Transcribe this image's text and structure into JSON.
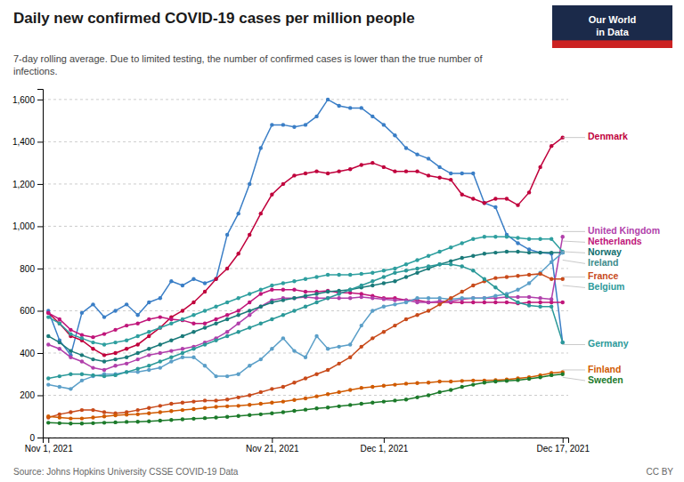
{
  "chart_data": {
    "type": "line",
    "title": "Daily new confirmed COVID-19 cases per million people",
    "subtitle": "7-day rolling average. Due to limited testing, the number of confirmed cases is lower than the true number of\ninfections.",
    "source": "Source: Johns Hopkins University CSSE COVID-19 Data",
    "license": "CC BY",
    "logo": [
      "Our World",
      "in Data"
    ],
    "categories": [
      "Nov 1, 2021",
      null,
      null,
      null,
      null,
      null,
      null,
      null,
      null,
      null,
      null,
      null,
      null,
      null,
      null,
      null,
      null,
      null,
      null,
      null,
      "Nov 21, 2021",
      null,
      null,
      null,
      null,
      null,
      null,
      null,
      null,
      null,
      "Dec 1, 2021",
      null,
      null,
      null,
      null,
      null,
      null,
      null,
      null,
      null,
      null,
      null,
      null,
      null,
      null,
      null,
      "Dec 17, 2021"
    ],
    "ylim": [
      0,
      1650
    ],
    "yticks": [
      0,
      200,
      400,
      600,
      800,
      {
        "value": 1000,
        "label": "1,000"
      },
      {
        "value": 1200,
        "label": "1,200"
      },
      {
        "value": 1400,
        "label": "1,400"
      },
      {
        "value": 1600,
        "label": "1,600"
      }
    ],
    "grid": true,
    "marker": "circle",
    "series": [
      {
        "color": "#3A7EC6",
        "values": [
          600,
          460,
          390,
          590,
          630,
          570,
          600,
          630,
          580,
          640,
          660,
          740,
          720,
          750,
          730,
          750,
          960,
          1060,
          1200,
          1370,
          1480,
          1480,
          1470,
          1480,
          1520,
          1600,
          1570,
          1560,
          1560,
          1520,
          1480,
          1430,
          1370,
          1340,
          1320,
          1280,
          1250,
          1250,
          1250,
          1110,
          1090,
          960,
          920,
          890,
          875,
          870,
          450
        ]
      },
      {
        "color": "#C0003C",
        "values": [
          590,
          540,
          480,
          460,
          420,
          390,
          400,
          420,
          440,
          480,
          520,
          570,
          600,
          640,
          690,
          750,
          800,
          870,
          960,
          1060,
          1150,
          1200,
          1240,
          1250,
          1260,
          1250,
          1260,
          1270,
          1290,
          1300,
          1280,
          1260,
          1260,
          1260,
          1240,
          1230,
          1220,
          1150,
          1130,
          1110,
          1130,
          1130,
          1100,
          1160,
          1280,
          1380,
          1420
        ]
      },
      {
        "color": "#C0157A",
        "values": [
          590,
          560,
          510,
          485,
          475,
          490,
          510,
          530,
          540,
          560,
          570,
          560,
          555,
          540,
          540,
          560,
          580,
          600,
          640,
          680,
          700,
          700,
          700,
          690,
          690,
          695,
          685,
          685,
          680,
          670,
          660,
          660,
          650,
          650,
          640,
          640,
          640,
          640,
          640,
          640,
          640,
          640,
          635,
          640,
          640,
          640,
          640
        ]
      },
      {
        "color": "#B13FAB",
        "values": [
          440,
          420,
          380,
          360,
          330,
          320,
          340,
          350,
          370,
          390,
          400,
          410,
          420,
          430,
          450,
          470,
          500,
          540,
          580,
          620,
          650,
          660,
          660,
          665,
          660,
          660,
          660,
          660,
          665,
          660,
          655,
          650,
          650,
          640,
          640,
          645,
          645,
          655,
          660,
          660,
          660,
          665,
          665,
          665,
          660,
          655,
          950
        ]
      },
      {
        "color": "#2E9F9F",
        "values": [
          570,
          540,
          490,
          470,
          450,
          440,
          450,
          460,
          480,
          500,
          520,
          540,
          560,
          580,
          600,
          620,
          640,
          660,
          680,
          700,
          720,
          730,
          740,
          750,
          760,
          770,
          770,
          770,
          775,
          780,
          790,
          800,
          820,
          840,
          860,
          880,
          900,
          920,
          940,
          950,
          950,
          950,
          945,
          940,
          940,
          940,
          880
        ]
      },
      {
        "color": "#1A7A7A",
        "values": [
          480,
          450,
          410,
          390,
          370,
          360,
          370,
          380,
          400,
          420,
          440,
          460,
          480,
          500,
          520,
          540,
          560,
          580,
          600,
          620,
          640,
          650,
          660,
          670,
          680,
          690,
          695,
          700,
          710,
          720,
          730,
          740,
          760,
          780,
          800,
          820,
          835,
          850,
          860,
          870,
          875,
          880,
          880,
          875,
          875,
          875,
          875
        ]
      },
      {
        "color": "#5B9FC8",
        "values": [
          250,
          240,
          230,
          270,
          290,
          300,
          300,
          310,
          310,
          320,
          330,
          360,
          380,
          380,
          340,
          290,
          290,
          300,
          340,
          370,
          420,
          470,
          410,
          380,
          480,
          420,
          430,
          440,
          530,
          600,
          620,
          630,
          640,
          660,
          660,
          660,
          655,
          660,
          660,
          660,
          670,
          680,
          700,
          730,
          780,
          830,
          875
        ]
      },
      {
        "color": "#C84A1A",
        "values": [
          95,
          110,
          120,
          130,
          130,
          120,
          115,
          120,
          130,
          140,
          150,
          160,
          165,
          170,
          175,
          175,
          180,
          190,
          200,
          215,
          230,
          240,
          260,
          280,
          300,
          320,
          350,
          380,
          430,
          470,
          500,
          530,
          560,
          580,
          600,
          630,
          660,
          690,
          720,
          740,
          755,
          760,
          765,
          770,
          775,
          750,
          750
        ]
      },
      {
        "color": "#2B9999",
        "values": [
          280,
          290,
          300,
          300,
          295,
          290,
          295,
          310,
          325,
          340,
          360,
          380,
          400,
          420,
          440,
          460,
          480,
          500,
          520,
          540,
          560,
          580,
          600,
          620,
          640,
          660,
          680,
          700,
          720,
          740,
          760,
          780,
          790,
          800,
          810,
          820,
          820,
          810,
          790,
          750,
          710,
          670,
          640,
          625,
          620,
          620,
          450
        ]
      },
      {
        "color": "#D05A00",
        "values": [
          100,
          95,
          90,
          90,
          95,
          100,
          105,
          108,
          110,
          115,
          120,
          125,
          130,
          135,
          140,
          145,
          148,
          150,
          155,
          160,
          165,
          170,
          178,
          185,
          195,
          205,
          215,
          225,
          235,
          240,
          245,
          250,
          255,
          258,
          260,
          265,
          265,
          268,
          270,
          270,
          272,
          275,
          280,
          285,
          295,
          305,
          310
        ]
      },
      {
        "color": "#1C7A2A",
        "values": [
          70,
          68,
          66,
          66,
          68,
          70,
          72,
          74,
          75,
          77,
          80,
          83,
          86,
          89,
          92,
          95,
          98,
          102,
          106,
          110,
          115,
          120,
          126,
          132,
          138,
          142,
          148,
          154,
          160,
          165,
          170,
          175,
          180,
          190,
          200,
          215,
          225,
          240,
          250,
          260,
          265,
          268,
          272,
          278,
          285,
          295,
          300
        ]
      }
    ],
    "annotations": [
      {
        "text": "Denmark",
        "y": 1420,
        "color": "#C0003C"
      },
      {
        "text": "United Kingdom",
        "y": 975,
        "color": "#B13FAB"
      },
      {
        "text": "Netherlands",
        "y": 930,
        "color": "#C0157A"
      },
      {
        "text": "Norway",
        "y": 880,
        "color": "#0E6E6E"
      },
      {
        "text": "Ireland",
        "y": 840,
        "color": "#3B8B8B"
      },
      {
        "text": "France",
        "y": 760,
        "color": "#C84A1A"
      },
      {
        "text": "Belgium",
        "y": 720,
        "color": "#2D9A9A"
      },
      {
        "text": "Germany",
        "y": 440,
        "color": "#2B9999"
      },
      {
        "text": "Finland",
        "y": 320,
        "color": "#D05A00"
      },
      {
        "text": "Sweden",
        "y": 285,
        "color": "#1C7A2A"
      }
    ]
  }
}
